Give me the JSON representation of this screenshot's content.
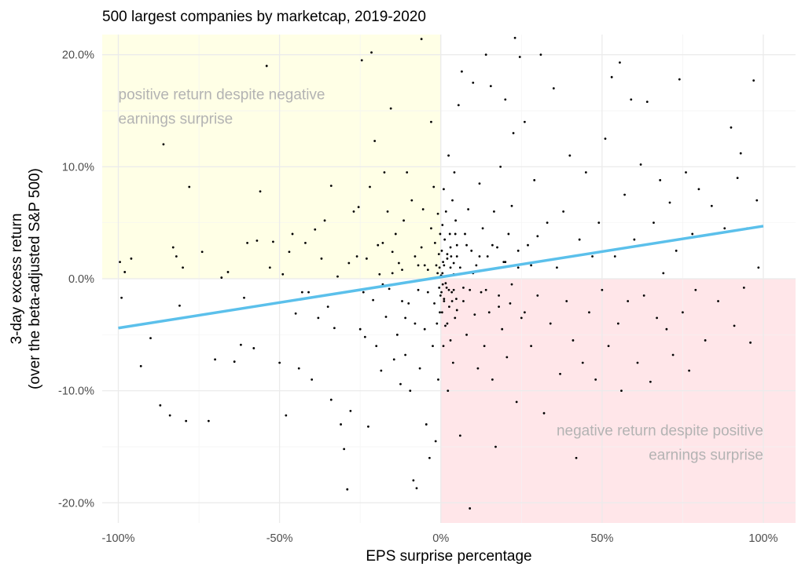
{
  "chart_data": {
    "type": "scatter",
    "title": "500 largest companies by marketcap, 2019-2020",
    "xlabel": "EPS surprise percentage",
    "ylabel_line1": "3-day excess return",
    "ylabel_line2": "(over the beta-adjusted S&P 500)",
    "xlim": [
      -1.05,
      1.1
    ],
    "ylim": [
      -0.218,
      0.218
    ],
    "x_ticks": [
      {
        "value": -1.0,
        "label": "-100%"
      },
      {
        "value": -0.5,
        "label": "-50%"
      },
      {
        "value": 0.0,
        "label": "0%"
      },
      {
        "value": 0.5,
        "label": "50%"
      },
      {
        "value": 1.0,
        "label": "100%"
      }
    ],
    "y_ticks": [
      {
        "value": 0.2,
        "label": "20.0%"
      },
      {
        "value": 0.1,
        "label": "10.0%"
      },
      {
        "value": 0.0,
        "label": "0.0%"
      },
      {
        "value": -0.1,
        "label": "-10.0%"
      },
      {
        "value": -0.2,
        "label": "-20.0%"
      }
    ],
    "grid": true,
    "regression_line": {
      "color": "#5bc0eb",
      "x": [
        -1.0,
        1.0
      ],
      "y": [
        -0.044,
        0.047
      ]
    },
    "regions": [
      {
        "name": "positive return despite negative earnings surprise",
        "x_range": [
          -1.05,
          0.0
        ],
        "y_range": [
          0.0,
          0.218
        ],
        "color": "#ffffe6"
      },
      {
        "name": "negative return despite positive earnings surprise",
        "x_range": [
          0.0,
          1.1
        ],
        "y_range": [
          -0.218,
          0.0
        ],
        "color": "#ffe6e9"
      }
    ],
    "annotations": [
      {
        "lines": [
          "positive return despite negative",
          "earnings surprise"
        ],
        "x": -1.0,
        "y": 0.16,
        "anchor": "start"
      },
      {
        "lines": [
          "negative return despite positive",
          "earnings surprise"
        ],
        "x": 1.0,
        "y": -0.14,
        "anchor": "end"
      }
    ],
    "point_color": "#000000",
    "points": [
      [
        -0.995,
        0.015
      ],
      [
        -0.99,
        -0.017
      ],
      [
        -0.98,
        0.006
      ],
      [
        -0.96,
        0.018
      ],
      [
        -0.93,
        -0.078
      ],
      [
        -0.9,
        -0.053
      ],
      [
        -0.87,
        -0.113
      ],
      [
        -0.86,
        0.12
      ],
      [
        -0.84,
        -0.122
      ],
      [
        -0.83,
        0.028
      ],
      [
        -0.82,
        0.02
      ],
      [
        -0.81,
        -0.024
      ],
      [
        -0.8,
        0.01
      ],
      [
        -0.79,
        -0.127
      ],
      [
        -0.78,
        0.082
      ],
      [
        -0.74,
        0.024
      ],
      [
        -0.72,
        -0.127
      ],
      [
        -0.7,
        -0.072
      ],
      [
        -0.68,
        0.001
      ],
      [
        -0.66,
        0.006
      ],
      [
        -0.64,
        -0.074
      ],
      [
        -0.62,
        -0.059
      ],
      [
        -0.61,
        -0.017
      ],
      [
        -0.6,
        0.032
      ],
      [
        -0.58,
        -0.062
      ],
      [
        -0.57,
        0.034
      ],
      [
        -0.56,
        0.078
      ],
      [
        -0.54,
        0.19
      ],
      [
        -0.53,
        0.01
      ],
      [
        -0.52,
        0.033
      ],
      [
        -0.5,
        -0.075
      ],
      [
        -0.49,
        0.004
      ],
      [
        -0.48,
        -0.122
      ],
      [
        -0.47,
        0.024
      ],
      [
        -0.46,
        0.04
      ],
      [
        -0.45,
        -0.031
      ],
      [
        -0.44,
        -0.08
      ],
      [
        -0.43,
        -0.012
      ],
      [
        -0.42,
        0.032
      ],
      [
        -0.41,
        -0.012
      ],
      [
        -0.4,
        -0.09
      ],
      [
        -0.39,
        0.044
      ],
      [
        -0.38,
        -0.035
      ],
      [
        -0.37,
        0.018
      ],
      [
        -0.36,
        0.052
      ],
      [
        -0.35,
        -0.025
      ],
      [
        -0.34,
        -0.108
      ],
      [
        -0.34,
        0.083
      ],
      [
        -0.33,
        -0.044
      ],
      [
        -0.32,
        0.002
      ],
      [
        -0.31,
        -0.13
      ],
      [
        -0.3,
        -0.152
      ],
      [
        -0.29,
        -0.188
      ],
      [
        -0.285,
        0.014
      ],
      [
        -0.28,
        -0.118
      ],
      [
        -0.27,
        0.06
      ],
      [
        -0.26,
        0.02
      ],
      [
        -0.255,
        0.064
      ],
      [
        -0.25,
        -0.045
      ],
      [
        -0.245,
        0.195
      ],
      [
        -0.24,
        -0.012
      ],
      [
        -0.235,
        -0.052
      ],
      [
        -0.23,
        0.018
      ],
      [
        -0.225,
        -0.132
      ],
      [
        -0.22,
        0.082
      ],
      [
        -0.215,
        0.202
      ],
      [
        -0.21,
        -0.019
      ],
      [
        -0.205,
        0.123
      ],
      [
        -0.2,
        -0.06
      ],
      [
        -0.195,
        0.03
      ],
      [
        -0.19,
        0.004
      ],
      [
        -0.185,
        -0.082
      ],
      [
        -0.18,
        0.032
      ],
      [
        -0.175,
        0.095
      ],
      [
        -0.17,
        -0.034
      ],
      [
        -0.165,
        0.06
      ],
      [
        -0.16,
        -0.009
      ],
      [
        -0.155,
        0.152
      ],
      [
        -0.15,
        0.024
      ],
      [
        -0.145,
        -0.072
      ],
      [
        -0.14,
        0.04
      ],
      [
        -0.135,
        -0.05
      ],
      [
        -0.13,
        0.014
      ],
      [
        -0.125,
        -0.094
      ],
      [
        -0.12,
        -0.02
      ],
      [
        -0.115,
        0.052
      ],
      [
        -0.11,
        -0.068
      ],
      [
        -0.105,
        0.095
      ],
      [
        -0.1,
        -0.022
      ],
      [
        -0.095,
        -0.1
      ],
      [
        -0.09,
        0.07
      ],
      [
        -0.085,
        -0.18
      ],
      [
        -0.08,
        -0.04
      ],
      [
        -0.075,
        -0.187
      ],
      [
        -0.07,
        0.012
      ],
      [
        -0.065,
        -0.08
      ],
      [
        -0.06,
        0.028
      ],
      [
        -0.055,
        0.062
      ],
      [
        -0.05,
        -0.045
      ],
      [
        -0.045,
        -0.13
      ],
      [
        -0.04,
        0.008
      ],
      [
        -0.035,
        -0.16
      ],
      [
        -0.03,
        0.045
      ],
      [
        -0.025,
        -0.06
      ],
      [
        -0.022,
        0.082
      ],
      [
        -0.02,
        -0.022
      ],
      [
        -0.018,
        0.032
      ],
      [
        -0.016,
        -0.145
      ],
      [
        -0.014,
        0.012
      ],
      [
        -0.012,
        -0.04
      ],
      [
        -0.01,
        0.005
      ],
      [
        -0.009,
        0.058
      ],
      [
        -0.008,
        -0.09
      ],
      [
        -0.006,
        0.022
      ],
      [
        -0.005,
        -0.008
      ],
      [
        -0.004,
        0.01
      ],
      [
        -0.003,
        -0.03
      ],
      [
        -0.002,
        0.04
      ],
      [
        -0.001,
        -0.015
      ],
      [
        -0.001,
        0.002
      ],
      [
        -0.06,
        0.214
      ],
      [
        -0.03,
        0.14
      ],
      [
        -0.04,
        -0.012
      ],
      [
        -0.07,
        -0.01
      ],
      [
        -0.11,
        -0.035
      ],
      [
        -0.15,
        0.005
      ],
      [
        -0.18,
        -0.005
      ],
      [
        -0.05,
        0.012
      ],
      [
        -0.08,
        0.02
      ],
      [
        -0.12,
        0.008
      ],
      [
        0.001,
        0.003
      ],
      [
        0.002,
        -0.012
      ],
      [
        0.003,
        0.025
      ],
      [
        0.004,
        -0.03
      ],
      [
        0.005,
        0.048
      ],
      [
        0.006,
        -0.005
      ],
      [
        0.007,
        0.015
      ],
      [
        0.008,
        -0.06
      ],
      [
        0.009,
        0.08
      ],
      [
        0.01,
        -0.018
      ],
      [
        0.012,
        0.035
      ],
      [
        0.014,
        -0.042
      ],
      [
        0.016,
        0.06
      ],
      [
        0.018,
        -0.008
      ],
      [
        0.02,
        0.022
      ],
      [
        0.022,
        -0.1
      ],
      [
        0.024,
        0.11
      ],
      [
        0.026,
        -0.025
      ],
      [
        0.028,
        0.04
      ],
      [
        0.03,
        -0.055
      ],
      [
        0.032,
        0.02
      ],
      [
        0.034,
        -0.012
      ],
      [
        0.036,
        0.07
      ],
      [
        0.038,
        -0.075
      ],
      [
        0.04,
        0.014
      ],
      [
        0.042,
        0.095
      ],
      [
        0.044,
        -0.035
      ],
      [
        0.046,
        0.052
      ],
      [
        0.048,
        -0.018
      ],
      [
        0.05,
        0.03
      ],
      [
        0.055,
        0.155
      ],
      [
        0.06,
        -0.14
      ],
      [
        0.065,
        0.185
      ],
      [
        0.07,
        -0.008
      ],
      [
        0.075,
        0.04
      ],
      [
        0.08,
        -0.05
      ],
      [
        0.085,
        0.062
      ],
      [
        0.09,
        -0.205
      ],
      [
        0.095,
        0.025
      ],
      [
        0.1,
        0.175
      ],
      [
        0.105,
        -0.032
      ],
      [
        0.11,
        0.012
      ],
      [
        0.115,
        -0.08
      ],
      [
        0.12,
        0.085
      ],
      [
        0.125,
        -0.012
      ],
      [
        0.13,
        0.045
      ],
      [
        0.135,
        -0.06
      ],
      [
        0.14,
        0.2
      ],
      [
        0.145,
        0.02
      ],
      [
        0.15,
        -0.03
      ],
      [
        0.155,
        0.172
      ],
      [
        0.16,
        -0.09
      ],
      [
        0.165,
        0.06
      ],
      [
        0.17,
        -0.15
      ],
      [
        0.175,
        0.028
      ],
      [
        0.18,
        -0.015
      ],
      [
        0.185,
        0.1
      ],
      [
        0.19,
        -0.045
      ],
      [
        0.195,
        0.015
      ],
      [
        0.2,
        0.16
      ],
      [
        0.205,
        -0.07
      ],
      [
        0.21,
        0.04
      ],
      [
        0.215,
        -0.022
      ],
      [
        0.22,
        0.065
      ],
      [
        0.225,
        0.13
      ],
      [
        0.23,
        0.215
      ],
      [
        0.235,
        -0.11
      ],
      [
        0.24,
        0.01
      ],
      [
        0.245,
        0.198
      ],
      [
        0.25,
        -0.035
      ],
      [
        0.26,
        0.14
      ],
      [
        0.27,
        0.03
      ],
      [
        0.28,
        -0.06
      ],
      [
        0.29,
        0.088
      ],
      [
        0.3,
        -0.015
      ],
      [
        0.31,
        0.2
      ],
      [
        0.32,
        -0.12
      ],
      [
        0.33,
        0.05
      ],
      [
        0.34,
        -0.04
      ],
      [
        0.35,
        0.17
      ],
      [
        0.36,
        0.01
      ],
      [
        0.37,
        -0.085
      ],
      [
        0.38,
        0.06
      ],
      [
        0.39,
        -0.02
      ],
      [
        0.4,
        0.11
      ],
      [
        0.41,
        -0.055
      ],
      [
        0.42,
        -0.16
      ],
      [
        0.43,
        0.035
      ],
      [
        0.44,
        -0.075
      ],
      [
        0.45,
        0.095
      ],
      [
        0.46,
        -0.03
      ],
      [
        0.47,
        0.02
      ],
      [
        0.48,
        -0.09
      ],
      [
        0.49,
        0.05
      ],
      [
        0.5,
        -0.01
      ],
      [
        0.51,
        0.125
      ],
      [
        0.52,
        -0.06
      ],
      [
        0.53,
        0.18
      ],
      [
        0.54,
        0.02
      ],
      [
        0.55,
        -0.04
      ],
      [
        0.555,
        0.193
      ],
      [
        0.56,
        -0.1
      ],
      [
        0.57,
        0.075
      ],
      [
        0.58,
        -0.02
      ],
      [
        0.59,
        0.16
      ],
      [
        0.6,
        0.035
      ],
      [
        0.61,
        -0.075
      ],
      [
        0.62,
        0.102
      ],
      [
        0.63,
        -0.015
      ],
      [
        0.64,
        0.158
      ],
      [
        0.65,
        -0.092
      ],
      [
        0.66,
        0.05
      ],
      [
        0.67,
        -0.035
      ],
      [
        0.68,
        0.088
      ],
      [
        0.69,
        0.005
      ],
      [
        0.7,
        -0.045
      ],
      [
        0.71,
        0.068
      ],
      [
        0.72,
        -0.068
      ],
      [
        0.73,
        0.025
      ],
      [
        0.74,
        0.178
      ],
      [
        0.75,
        -0.03
      ],
      [
        0.76,
        0.095
      ],
      [
        0.77,
        -0.082
      ],
      [
        0.78,
        0.04
      ],
      [
        0.79,
        -0.01
      ],
      [
        0.8,
        0.08
      ],
      [
        0.82,
        -0.055
      ],
      [
        0.84,
        0.065
      ],
      [
        0.86,
        -0.02
      ],
      [
        0.88,
        0.045
      ],
      [
        0.9,
        0.135
      ],
      [
        0.91,
        -0.042
      ],
      [
        0.92,
        0.09
      ],
      [
        0.93,
        0.112
      ],
      [
        0.94,
        -0.008
      ],
      [
        0.95,
        0.045
      ],
      [
        0.96,
        -0.057
      ],
      [
        0.97,
        0.177
      ],
      [
        0.98,
        0.07
      ],
      [
        0.985,
        0.01
      ],
      [
        0.005,
        0.005
      ],
      [
        0.01,
        0.012
      ],
      [
        0.015,
        -0.004
      ],
      [
        0.02,
        0.018
      ],
      [
        0.025,
        -0.01
      ],
      [
        0.03,
        0.028
      ],
      [
        0.035,
        -0.02
      ],
      [
        0.04,
        0.004
      ],
      [
        0.045,
        0.04
      ],
      [
        0.05,
        -0.028
      ],
      [
        0.01,
        -0.02
      ],
      [
        0.02,
        -0.04
      ],
      [
        0.03,
        0.01
      ],
      [
        0.04,
        -0.01
      ],
      [
        0.05,
        0.02
      ],
      [
        0.06,
        0.01
      ],
      [
        0.07,
        -0.02
      ],
      [
        0.08,
        0.03
      ],
      [
        0.09,
        -0.01
      ],
      [
        0.1,
        0.005
      ],
      [
        0.12,
        0.02
      ],
      [
        0.14,
        -0.01
      ],
      [
        0.16,
        0.03
      ],
      [
        0.18,
        -0.025
      ],
      [
        0.2,
        0.015
      ],
      [
        0.22,
        -0.005
      ],
      [
        0.24,
        0.025
      ],
      [
        0.26,
        -0.03
      ],
      [
        0.28,
        0.012
      ],
      [
        0.3,
        0.038
      ]
    ]
  }
}
